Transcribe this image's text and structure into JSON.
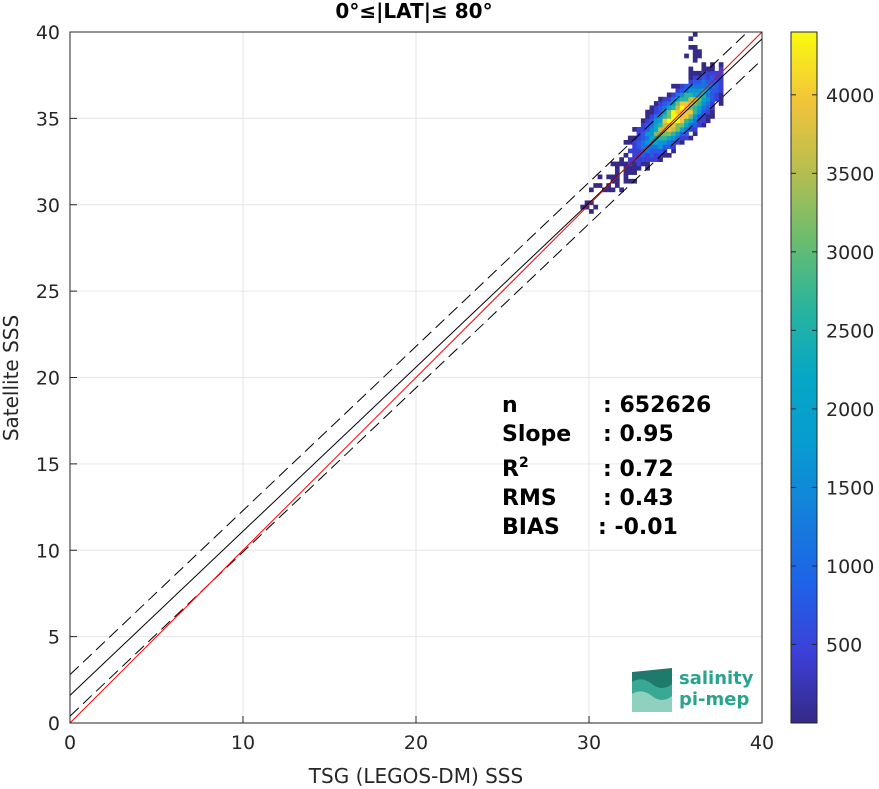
{
  "chart_data": {
    "type": "heatmap",
    "title": "0°≤|LAT|≤ 80°",
    "xlabel": "TSG (LEGOS-DM) SSS",
    "ylabel": "Satellite SSS",
    "xlim": [
      0,
      40
    ],
    "ylim": [
      0,
      40
    ],
    "xticks": [
      "0",
      "10",
      "20",
      "30",
      "40"
    ],
    "yticks": [
      "0",
      "5",
      "10",
      "15",
      "20",
      "25",
      "30",
      "35",
      "40"
    ],
    "grid": true,
    "colorbar": {
      "colormap": "parula",
      "range": [
        0,
        4400
      ],
      "ticks": [
        "500",
        "1000",
        "1500",
        "2000",
        "2500",
        "3000",
        "3500",
        "4000"
      ]
    },
    "density_peak": {
      "x": 35.0,
      "y": 35.0,
      "count": 4400
    },
    "reference_lines": {
      "one_to_one": {
        "color": "#ff0000",
        "intercept": 0,
        "slope": 1
      },
      "regression": {
        "color": "#000000",
        "intercept": 1.6,
        "slope": 0.95
      },
      "regression_band": {
        "color": "#000000",
        "offsets": [
          -1.2,
          1.2
        ]
      }
    },
    "stats": [
      {
        "label": "n",
        "sup": "",
        "value": ": 652626"
      },
      {
        "label": "Slope",
        "sup": "",
        "value": ": 0.95"
      },
      {
        "label": "R",
        "sup": "2",
        "value": ": 0.72"
      },
      {
        "label": "RMS",
        "sup": "",
        "value": ": 0.43"
      },
      {
        "label": "BIAS",
        "sup": "",
        "value": ": -0.01"
      }
    ]
  },
  "logo": {
    "line1": "salinity",
    "line2": "pi-mep",
    "color": "#2aa38f"
  }
}
